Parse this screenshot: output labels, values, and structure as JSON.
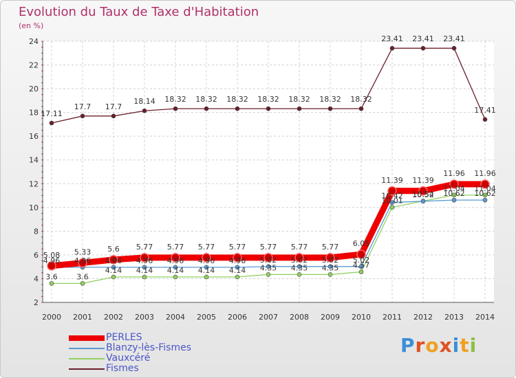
{
  "title": "Evolution du Taux de Taxe d'Habitation",
  "unit": "(en %)",
  "logo": "Proxiti",
  "chart_data": {
    "type": "line",
    "categories": [
      "2000",
      "2001",
      "2002",
      "2003",
      "2004",
      "2005",
      "2006",
      "2007",
      "2008",
      "2009",
      "2010",
      "2011",
      "2012",
      "2013",
      "2014"
    ],
    "ylim": [
      2,
      24
    ],
    "yticks": [
      2,
      4,
      6,
      8,
      10,
      12,
      14,
      16,
      18,
      20,
      22,
      24
    ],
    "grid": true,
    "legend_position": "bottom-left",
    "series": [
      {
        "name": "Fismes",
        "color": "#6b1e2a",
        "values": [
          17.11,
          17.7,
          17.7,
          18.14,
          18.32,
          18.32,
          18.32,
          18.32,
          18.32,
          18.32,
          18.32,
          23.41,
          23.41,
          23.41,
          17.41
        ],
        "labels": [
          "17.11",
          "17.7",
          "17.7",
          "18.14",
          "18.32",
          "18.32",
          "18.32",
          "18.32",
          "18.32",
          "18.32",
          "18.32",
          "23.41",
          "23.41",
          "23.41",
          "17.41"
        ]
      },
      {
        "name": "Vauxcéré",
        "color": "#90d060",
        "values": [
          3.6,
          3.6,
          4.14,
          4.14,
          4.14,
          4.14,
          4.14,
          4.35,
          4.35,
          4.35,
          4.57,
          10.01,
          10.54,
          11.04,
          11.04
        ],
        "labels": [
          "3.6",
          "3.6",
          "4.14",
          "4.14",
          "4.14",
          "4.14",
          "4.14",
          "4.35",
          "4.35",
          "4.35",
          "4.57",
          "10.01",
          "10.54",
          "11.04",
          "11.04"
        ]
      },
      {
        "name": "Blanzy-lès-Fismes",
        "color": "#5a9ad0",
        "values": [
          4.96,
          4.96,
          4.96,
          4.96,
          4.96,
          4.96,
          4.96,
          5.02,
          5.02,
          5.02,
          5.02,
          10.42,
          10.52,
          10.62,
          10.62
        ],
        "labels": [
          "4.96",
          "4.96",
          "4.96",
          "4.96",
          "4.96",
          "4.96",
          "4.96",
          "5.02",
          "5.02",
          "5.02",
          "5.02",
          "10.42",
          "10.52",
          "10.62",
          "10.62"
        ]
      },
      {
        "name": "PERLES",
        "color": "#ee0000",
        "values": [
          5.08,
          5.33,
          5.6,
          5.77,
          5.77,
          5.77,
          5.77,
          5.77,
          5.77,
          5.77,
          6.05,
          11.39,
          11.39,
          11.96,
          11.96
        ],
        "labels": [
          "5.08",
          "5.33",
          "5.6",
          "5.77",
          "5.77",
          "5.77",
          "5.77",
          "5.77",
          "5.77",
          "5.77",
          "6.05",
          "11.39",
          "11.39",
          "11.96",
          "11.96"
        ]
      }
    ]
  },
  "legend": [
    {
      "name": "PERLES",
      "color": "#ee0000",
      "width": 8
    },
    {
      "name": "Blanzy-lès-Fismes",
      "color": "#5a9ad0",
      "width": 2
    },
    {
      "name": "Vauxcéré",
      "color": "#90d060",
      "width": 2
    },
    {
      "name": "Fismes",
      "color": "#6b1e2a",
      "width": 2
    }
  ]
}
